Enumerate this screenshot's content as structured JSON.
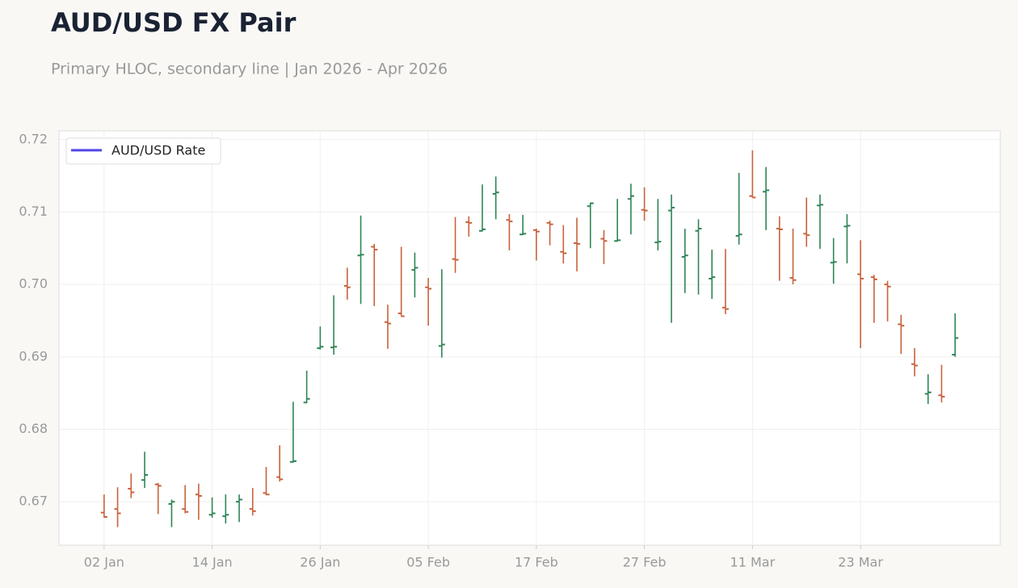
{
  "chart_data": {
    "type": "ohlc",
    "title": "AUD/USD FX Pair",
    "subtitle": "Primary HLOC, secondary line | Jan 2026 - Apr 2026",
    "categories": [
      "02 Jan",
      null,
      null,
      null,
      null,
      null,
      null,
      null,
      "14 Jan",
      null,
      null,
      null,
      null,
      null,
      null,
      null,
      "26 Jan",
      null,
      null,
      null,
      null,
      null,
      null,
      null,
      "05 Feb",
      null,
      null,
      null,
      null,
      null,
      null,
      null,
      "17 Feb",
      null,
      null,
      null,
      null,
      null,
      null,
      null,
      "27 Feb",
      null,
      null,
      null,
      null,
      null,
      null,
      null,
      "11 Mar",
      null,
      null,
      null,
      null,
      null,
      null,
      null,
      "23 Mar",
      null,
      null,
      null,
      null,
      null,
      null,
      null
    ],
    "series": [
      {
        "name": "AUD/USD Rate",
        "color": "#4f46e5",
        "open": [
          0.6685,
          0.669,
          0.6718,
          0.673,
          0.6724,
          0.6697,
          0.669,
          0.671,
          0.6682,
          0.668,
          0.67,
          0.669,
          0.6712,
          0.6734,
          0.6755,
          0.6837,
          0.6912,
          0.6913,
          0.6998,
          0.704,
          0.7052,
          0.6948,
          0.696,
          0.702,
          0.6996,
          0.6915,
          0.7035,
          0.7086,
          0.7074,
          0.7125,
          0.7089,
          0.7069,
          0.7075,
          0.7085,
          0.7045,
          0.7057,
          0.7108,
          0.7063,
          0.706,
          0.7118,
          0.7103,
          0.7058,
          0.7102,
          0.7038,
          0.7074,
          0.7008,
          0.6968,
          0.7067,
          0.7122,
          0.7128,
          0.7077,
          0.7009,
          0.707,
          0.7109,
          0.703,
          0.708,
          0.7014,
          0.701,
          0.7,
          0.6945,
          0.689,
          0.6849,
          0.6847,
          0.6903
        ],
        "high": [
          0.671,
          0.672,
          0.6739,
          0.6769,
          0.6726,
          0.6703,
          0.6723,
          0.6725,
          0.6706,
          0.671,
          0.671,
          0.6719,
          0.6748,
          0.6778,
          0.6838,
          0.6881,
          0.6942,
          0.6985,
          0.7023,
          0.7095,
          0.7056,
          0.6972,
          0.7052,
          0.7044,
          0.7009,
          0.7021,
          0.7093,
          0.7094,
          0.7138,
          0.7149,
          0.7097,
          0.7096,
          0.7077,
          0.7088,
          0.7082,
          0.7092,
          0.7113,
          0.7075,
          0.7118,
          0.7139,
          0.7134,
          0.7118,
          0.7124,
          0.7077,
          0.709,
          0.7048,
          0.7049,
          0.7154,
          0.7185,
          0.7162,
          0.7094,
          0.7077,
          0.712,
          0.7124,
          0.7064,
          0.7097,
          0.7061,
          0.7013,
          0.7005,
          0.6958,
          0.6912,
          0.6876,
          0.6889,
          0.696
        ],
        "low": [
          0.6678,
          0.6665,
          0.6705,
          0.6719,
          0.6683,
          0.6665,
          0.6684,
          0.6675,
          0.6678,
          0.667,
          0.6672,
          0.6681,
          0.6709,
          0.6728,
          0.6754,
          0.6836,
          0.691,
          0.6903,
          0.6979,
          0.6973,
          0.697,
          0.6911,
          0.6956,
          0.6982,
          0.6943,
          0.6899,
          0.7016,
          0.7066,
          0.7073,
          0.709,
          0.7047,
          0.7068,
          0.7033,
          0.7054,
          0.7029,
          0.7018,
          0.705,
          0.7028,
          0.7059,
          0.7069,
          0.7088,
          0.7047,
          0.6947,
          0.6988,
          0.6986,
          0.698,
          0.6959,
          0.7055,
          0.712,
          0.7075,
          0.7005,
          0.7,
          0.7052,
          0.7049,
          0.7001,
          0.7029,
          0.6912,
          0.6947,
          0.6949,
          0.6904,
          0.6873,
          0.6835,
          0.6837,
          0.69
        ],
        "close": [
          0.6679,
          0.6684,
          0.6713,
          0.6737,
          0.6722,
          0.67,
          0.6686,
          0.6708,
          0.6684,
          0.6682,
          0.6703,
          0.6687,
          0.671,
          0.6731,
          0.6756,
          0.6842,
          0.6914,
          0.6914,
          0.6996,
          0.7041,
          0.7048,
          0.6946,
          0.6956,
          0.7023,
          0.6994,
          0.6917,
          0.7034,
          0.7085,
          0.7076,
          0.7127,
          0.7087,
          0.707,
          0.7073,
          0.7083,
          0.7043,
          0.7056,
          0.7112,
          0.706,
          0.7061,
          0.7122,
          0.7102,
          0.7059,
          0.7106,
          0.704,
          0.7077,
          0.701,
          0.6966,
          0.7069,
          0.712,
          0.713,
          0.7076,
          0.7006,
          0.7068,
          0.711,
          0.7031,
          0.7081,
          0.7008,
          0.7007,
          0.6997,
          0.6943,
          0.6888,
          0.6851,
          0.6845,
          0.6926
        ]
      }
    ],
    "up_color": "#2e8555",
    "down_color": "#c8623c",
    "ylim": [
      0.664,
      0.7212
    ],
    "yticks": [
      0.67,
      0.68,
      0.69,
      0.7,
      0.71,
      0.72
    ],
    "ytick_labels": [
      "0.67",
      "0.68",
      "0.69",
      "0.70",
      "0.71",
      "0.72"
    ],
    "grid": true,
    "legend": "upper left"
  }
}
